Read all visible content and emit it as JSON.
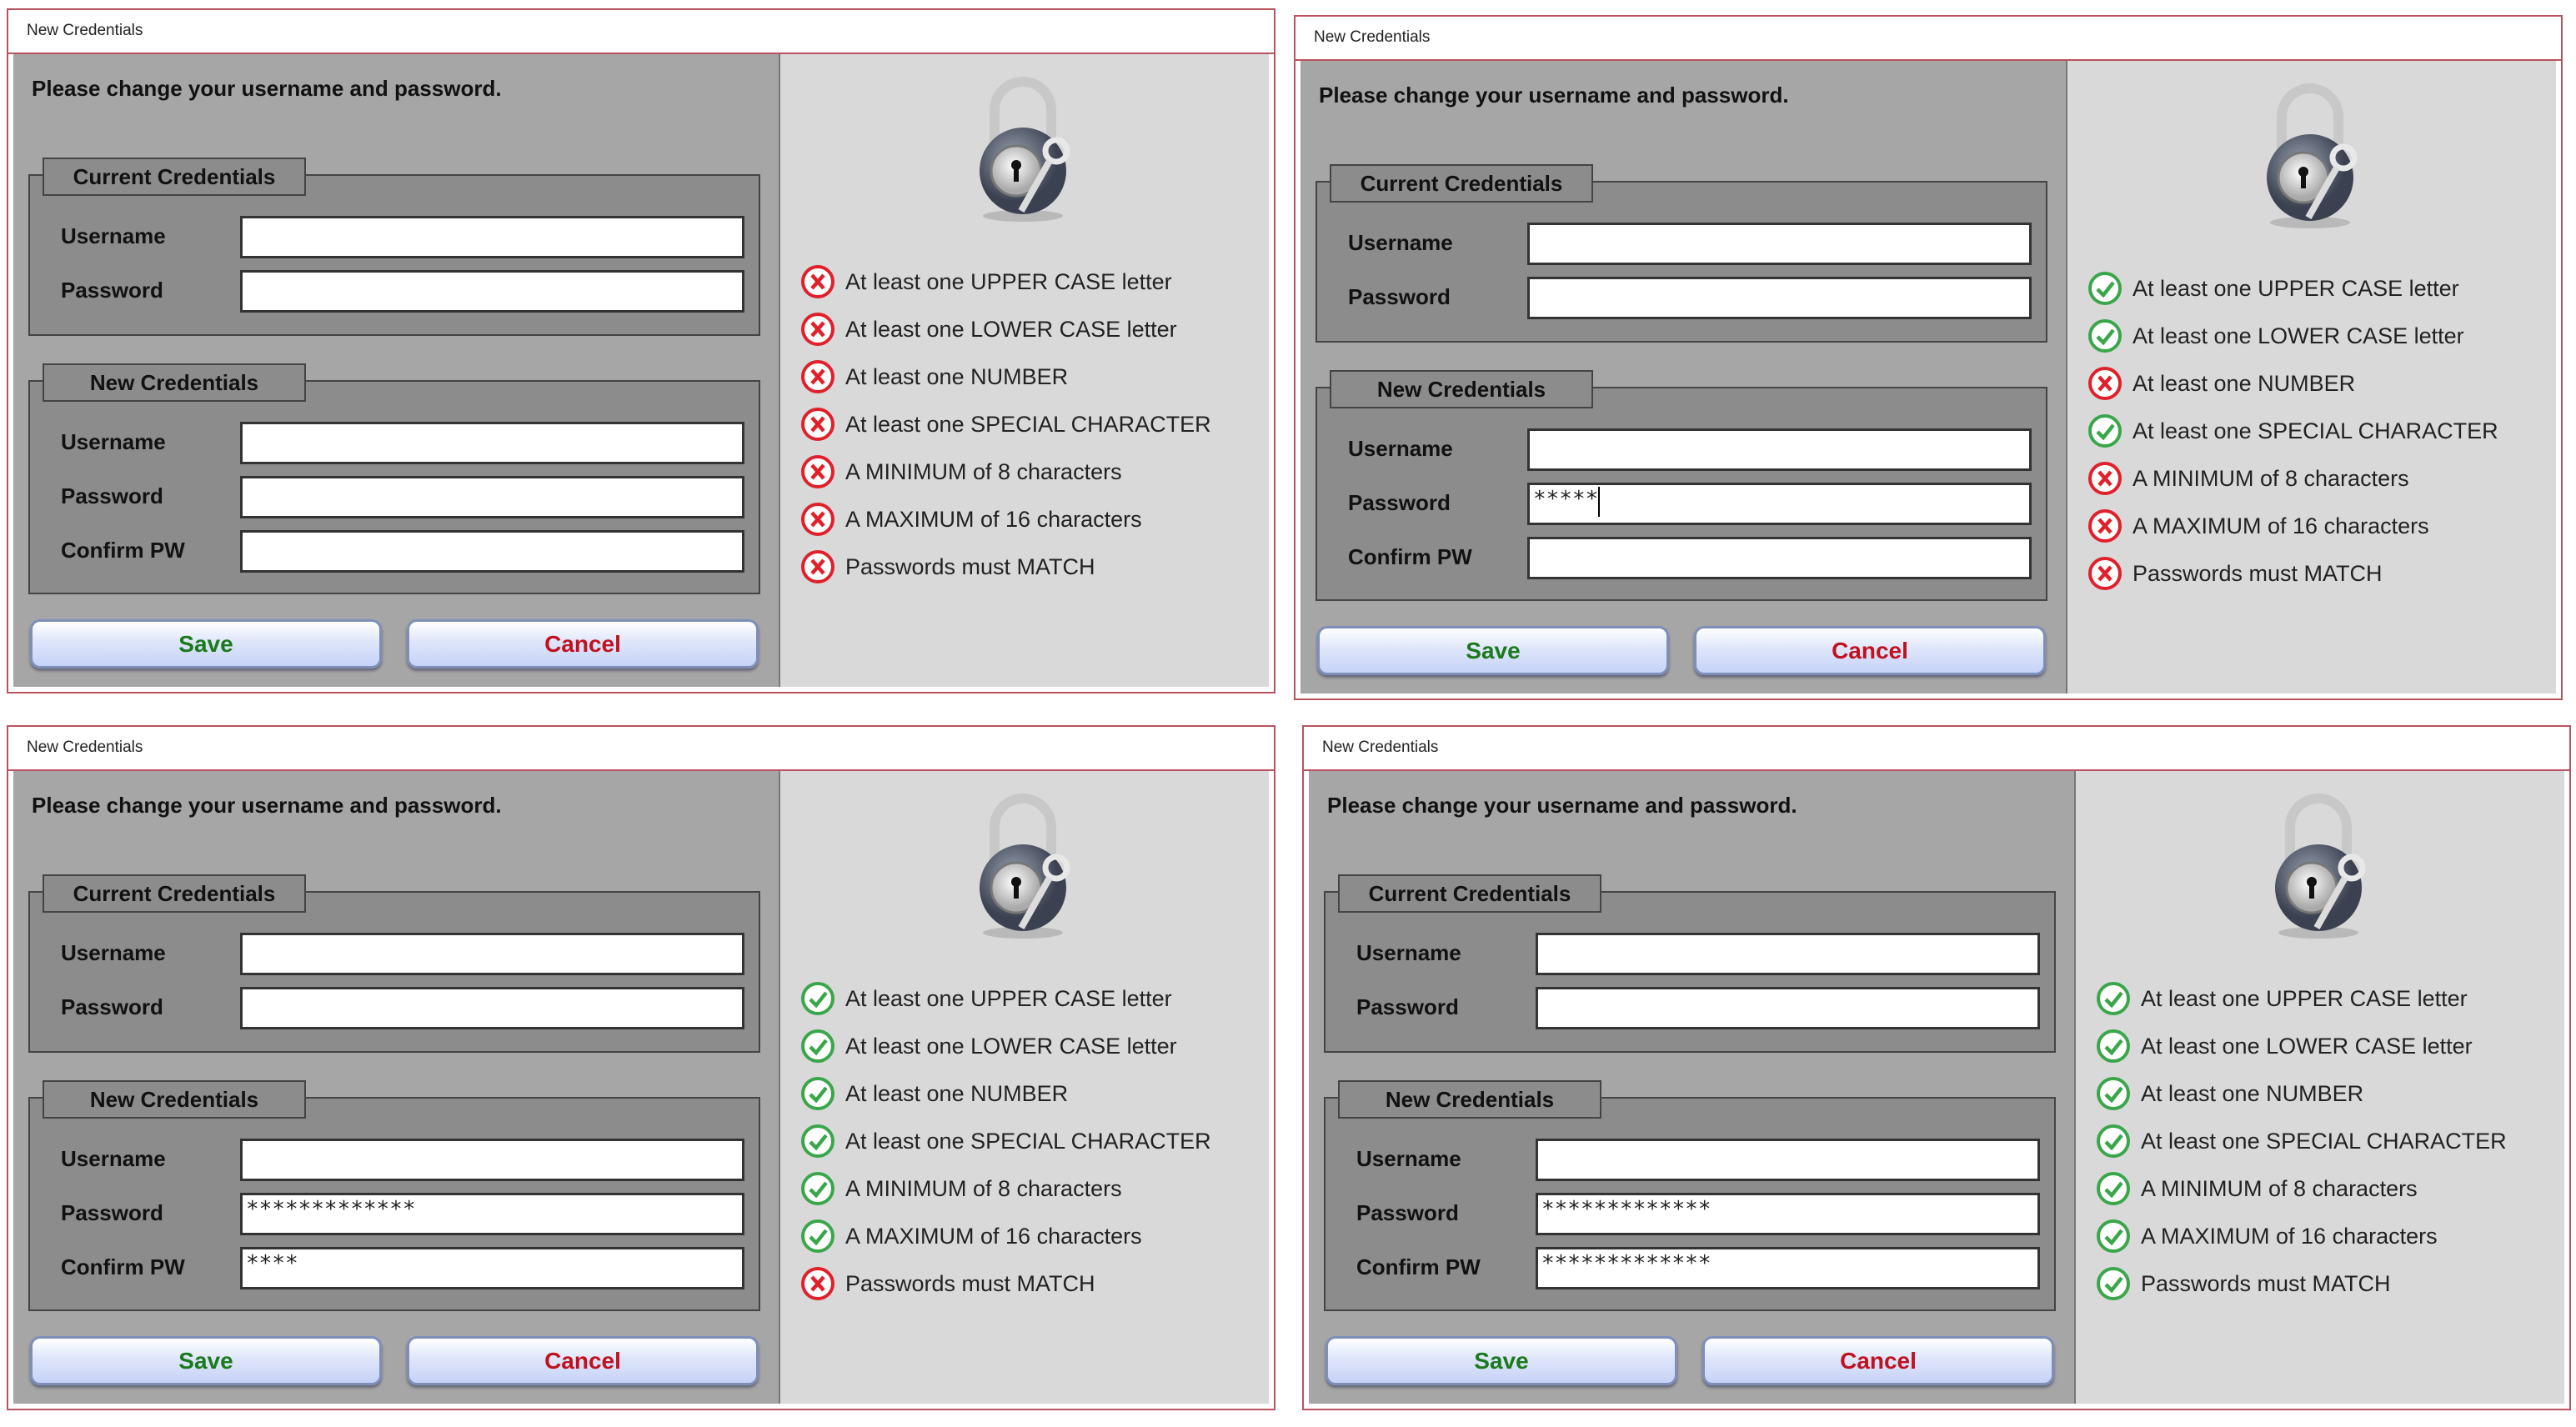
{
  "colors": {
    "pass": "#3aa64a",
    "fail": "#e0202a",
    "save": "#1b7a1b",
    "cancel": "#c0121e",
    "window_border": "#b8535f"
  },
  "requirements": [
    "At least one UPPER CASE letter",
    "At least one LOWER CASE letter",
    "At least one NUMBER",
    "At least one SPECIAL CHARACTER",
    "A MINIMUM of 8 characters",
    "A MAXIMUM of 16 characters",
    "Passwords must MATCH"
  ],
  "labels": {
    "window_title": "New Credentials",
    "heading": "Please change your username and password.",
    "current_group": "Current Credentials",
    "new_group": "New Credentials",
    "username": "Username",
    "password": "Password",
    "confirm": "Confirm PW",
    "save": "Save",
    "cancel": "Cancel"
  },
  "panels": [
    {
      "current_username": "",
      "current_password": "",
      "new_username": "",
      "new_password": "",
      "confirm_password": "",
      "caret_in": "",
      "status": [
        "fail",
        "fail",
        "fail",
        "fail",
        "fail",
        "fail",
        "fail"
      ]
    },
    {
      "current_username": "",
      "current_password": "",
      "new_username": "",
      "new_password": "*****",
      "confirm_password": "",
      "caret_in": "new_password",
      "status": [
        "pass",
        "pass",
        "fail",
        "pass",
        "fail",
        "fail",
        "fail"
      ]
    },
    {
      "current_username": "",
      "current_password": "",
      "new_username": "",
      "new_password": "*************",
      "confirm_password": "****",
      "caret_in": "",
      "status": [
        "pass",
        "pass",
        "pass",
        "pass",
        "pass",
        "pass",
        "fail"
      ]
    },
    {
      "current_username": "",
      "current_password": "",
      "new_username": "",
      "new_password": "*************",
      "confirm_password": "*************",
      "caret_in": "",
      "status": [
        "pass",
        "pass",
        "pass",
        "pass",
        "pass",
        "pass",
        "pass"
      ]
    }
  ]
}
